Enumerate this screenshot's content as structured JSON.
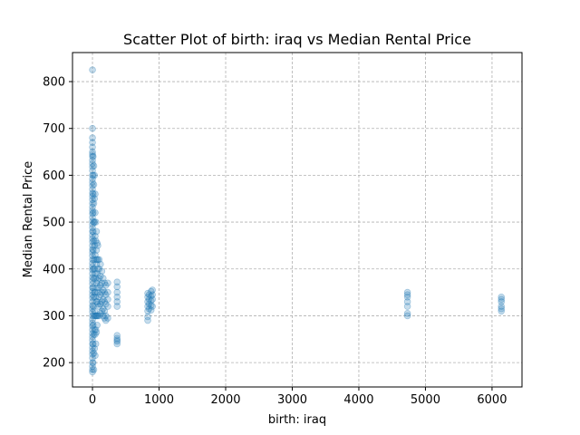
{
  "chart_data": {
    "type": "scatter",
    "title": "Scatter Plot of birth: iraq vs Median Rental Price",
    "xlabel": "birth: iraq",
    "ylabel": "Median Rental Price",
    "xlim": [
      -300,
      6450
    ],
    "ylim": [
      148,
      862
    ],
    "xticks": [
      0,
      1000,
      2000,
      3000,
      4000,
      5000,
      6000
    ],
    "yticks": [
      200,
      300,
      400,
      500,
      600,
      700,
      800
    ],
    "grid": true,
    "legend": "none",
    "marker_color": "#1f77b4",
    "marker_alpha": 0.25,
    "points": [
      [
        0,
        825
      ],
      [
        0,
        700
      ],
      [
        0,
        680
      ],
      [
        0,
        670
      ],
      [
        0,
        660
      ],
      [
        0,
        650
      ],
      [
        0,
        645
      ],
      [
        0,
        640
      ],
      [
        0,
        632
      ],
      [
        0,
        625
      ],
      [
        0,
        618
      ],
      [
        0,
        610
      ],
      [
        0,
        600
      ],
      [
        0,
        592
      ],
      [
        0,
        585
      ],
      [
        0,
        578
      ],
      [
        0,
        570
      ],
      [
        0,
        562
      ],
      [
        0,
        555
      ],
      [
        0,
        548
      ],
      [
        0,
        540
      ],
      [
        0,
        532
      ],
      [
        0,
        525
      ],
      [
        0,
        518
      ],
      [
        0,
        510
      ],
      [
        0,
        502
      ],
      [
        0,
        495
      ],
      [
        0,
        488
      ],
      [
        0,
        480
      ],
      [
        0,
        472
      ],
      [
        0,
        465
      ],
      [
        0,
        458
      ],
      [
        0,
        450
      ],
      [
        0,
        442
      ],
      [
        0,
        435
      ],
      [
        0,
        428
      ],
      [
        0,
        420
      ],
      [
        0,
        412
      ],
      [
        0,
        405
      ],
      [
        0,
        398
      ],
      [
        0,
        390
      ],
      [
        0,
        382
      ],
      [
        0,
        375
      ],
      [
        0,
        368
      ],
      [
        0,
        360
      ],
      [
        0,
        352
      ],
      [
        0,
        345
      ],
      [
        0,
        338
      ],
      [
        0,
        330
      ],
      [
        0,
        322
      ],
      [
        0,
        315
      ],
      [
        0,
        308
      ],
      [
        0,
        300
      ],
      [
        0,
        292
      ],
      [
        0,
        285
      ],
      [
        0,
        278
      ],
      [
        0,
        270
      ],
      [
        0,
        262
      ],
      [
        0,
        255
      ],
      [
        0,
        248
      ],
      [
        0,
        240
      ],
      [
        0,
        232
      ],
      [
        0,
        225
      ],
      [
        0,
        218
      ],
      [
        0,
        210
      ],
      [
        0,
        200
      ],
      [
        0,
        192
      ],
      [
        0,
        185
      ],
      [
        0,
        180
      ],
      [
        10,
        640
      ],
      [
        10,
        600
      ],
      [
        10,
        560
      ],
      [
        10,
        520
      ],
      [
        10,
        480
      ],
      [
        10,
        440
      ],
      [
        10,
        400
      ],
      [
        10,
        360
      ],
      [
        10,
        320
      ],
      [
        10,
        280
      ],
      [
        10,
        240
      ],
      [
        10,
        200
      ],
      [
        20,
        620
      ],
      [
        20,
        580
      ],
      [
        20,
        540
      ],
      [
        20,
        500
      ],
      [
        20,
        460
      ],
      [
        20,
        420
      ],
      [
        20,
        380
      ],
      [
        20,
        340
      ],
      [
        20,
        300
      ],
      [
        20,
        260
      ],
      [
        20,
        220
      ],
      [
        20,
        185
      ],
      [
        30,
        600
      ],
      [
        30,
        550
      ],
      [
        30,
        500
      ],
      [
        30,
        450
      ],
      [
        30,
        400
      ],
      [
        30,
        350
      ],
      [
        30,
        310
      ],
      [
        30,
        270
      ],
      [
        30,
        230
      ],
      [
        40,
        560
      ],
      [
        40,
        520
      ],
      [
        40,
        470
      ],
      [
        40,
        430
      ],
      [
        40,
        390
      ],
      [
        40,
        350
      ],
      [
        40,
        300
      ],
      [
        40,
        260
      ],
      [
        40,
        215
      ],
      [
        50,
        500
      ],
      [
        50,
        460
      ],
      [
        50,
        420
      ],
      [
        50,
        380
      ],
      [
        50,
        340
      ],
      [
        50,
        300
      ],
      [
        50,
        270
      ],
      [
        50,
        240
      ],
      [
        60,
        480
      ],
      [
        60,
        440
      ],
      [
        60,
        410
      ],
      [
        60,
        370
      ],
      [
        60,
        330
      ],
      [
        60,
        300
      ],
      [
        60,
        265
      ],
      [
        70,
        455
      ],
      [
        70,
        420
      ],
      [
        70,
        390
      ],
      [
        70,
        360
      ],
      [
        70,
        330
      ],
      [
        70,
        300
      ],
      [
        70,
        280
      ],
      [
        80,
        450
      ],
      [
        80,
        420
      ],
      [
        80,
        400
      ],
      [
        80,
        375
      ],
      [
        80,
        350
      ],
      [
        80,
        325
      ],
      [
        80,
        300
      ],
      [
        100,
        420
      ],
      [
        100,
        400
      ],
      [
        100,
        380
      ],
      [
        100,
        360
      ],
      [
        100,
        340
      ],
      [
        100,
        320
      ],
      [
        100,
        300
      ],
      [
        120,
        410
      ],
      [
        120,
        385
      ],
      [
        120,
        365
      ],
      [
        120,
        345
      ],
      [
        120,
        325
      ],
      [
        120,
        305
      ],
      [
        140,
        395
      ],
      [
        140,
        370
      ],
      [
        140,
        350
      ],
      [
        140,
        330
      ],
      [
        140,
        310
      ],
      [
        160,
        380
      ],
      [
        160,
        355
      ],
      [
        160,
        335
      ],
      [
        160,
        315
      ],
      [
        160,
        300
      ],
      [
        180,
        370
      ],
      [
        180,
        350
      ],
      [
        180,
        330
      ],
      [
        180,
        310
      ],
      [
        180,
        295
      ],
      [
        200,
        365
      ],
      [
        200,
        345
      ],
      [
        200,
        325
      ],
      [
        200,
        300
      ],
      [
        200,
        290
      ],
      [
        230,
        370
      ],
      [
        230,
        350
      ],
      [
        230,
        335
      ],
      [
        230,
        320
      ],
      [
        230,
        295
      ],
      [
        370,
        372
      ],
      [
        370,
        362
      ],
      [
        370,
        350
      ],
      [
        370,
        340
      ],
      [
        370,
        330
      ],
      [
        370,
        320
      ],
      [
        370,
        258
      ],
      [
        370,
        252
      ],
      [
        370,
        248
      ],
      [
        370,
        245
      ],
      [
        370,
        240
      ],
      [
        830,
        348
      ],
      [
        830,
        340
      ],
      [
        830,
        330
      ],
      [
        830,
        320
      ],
      [
        830,
        310
      ],
      [
        830,
        298
      ],
      [
        830,
        290
      ],
      [
        850,
        345
      ],
      [
        850,
        335
      ],
      [
        850,
        325
      ],
      [
        850,
        315
      ],
      [
        880,
        352
      ],
      [
        880,
        342
      ],
      [
        880,
        332
      ],
      [
        880,
        322
      ],
      [
        880,
        312
      ],
      [
        900,
        355
      ],
      [
        900,
        345
      ],
      [
        900,
        335
      ],
      [
        900,
        320
      ],
      [
        4730,
        350
      ],
      [
        4730,
        345
      ],
      [
        4730,
        340
      ],
      [
        4730,
        330
      ],
      [
        4730,
        320
      ],
      [
        4730,
        305
      ],
      [
        4730,
        300
      ],
      [
        6140,
        340
      ],
      [
        6140,
        335
      ],
      [
        6140,
        330
      ],
      [
        6140,
        320
      ],
      [
        6140,
        315
      ],
      [
        6140,
        310
      ]
    ]
  }
}
